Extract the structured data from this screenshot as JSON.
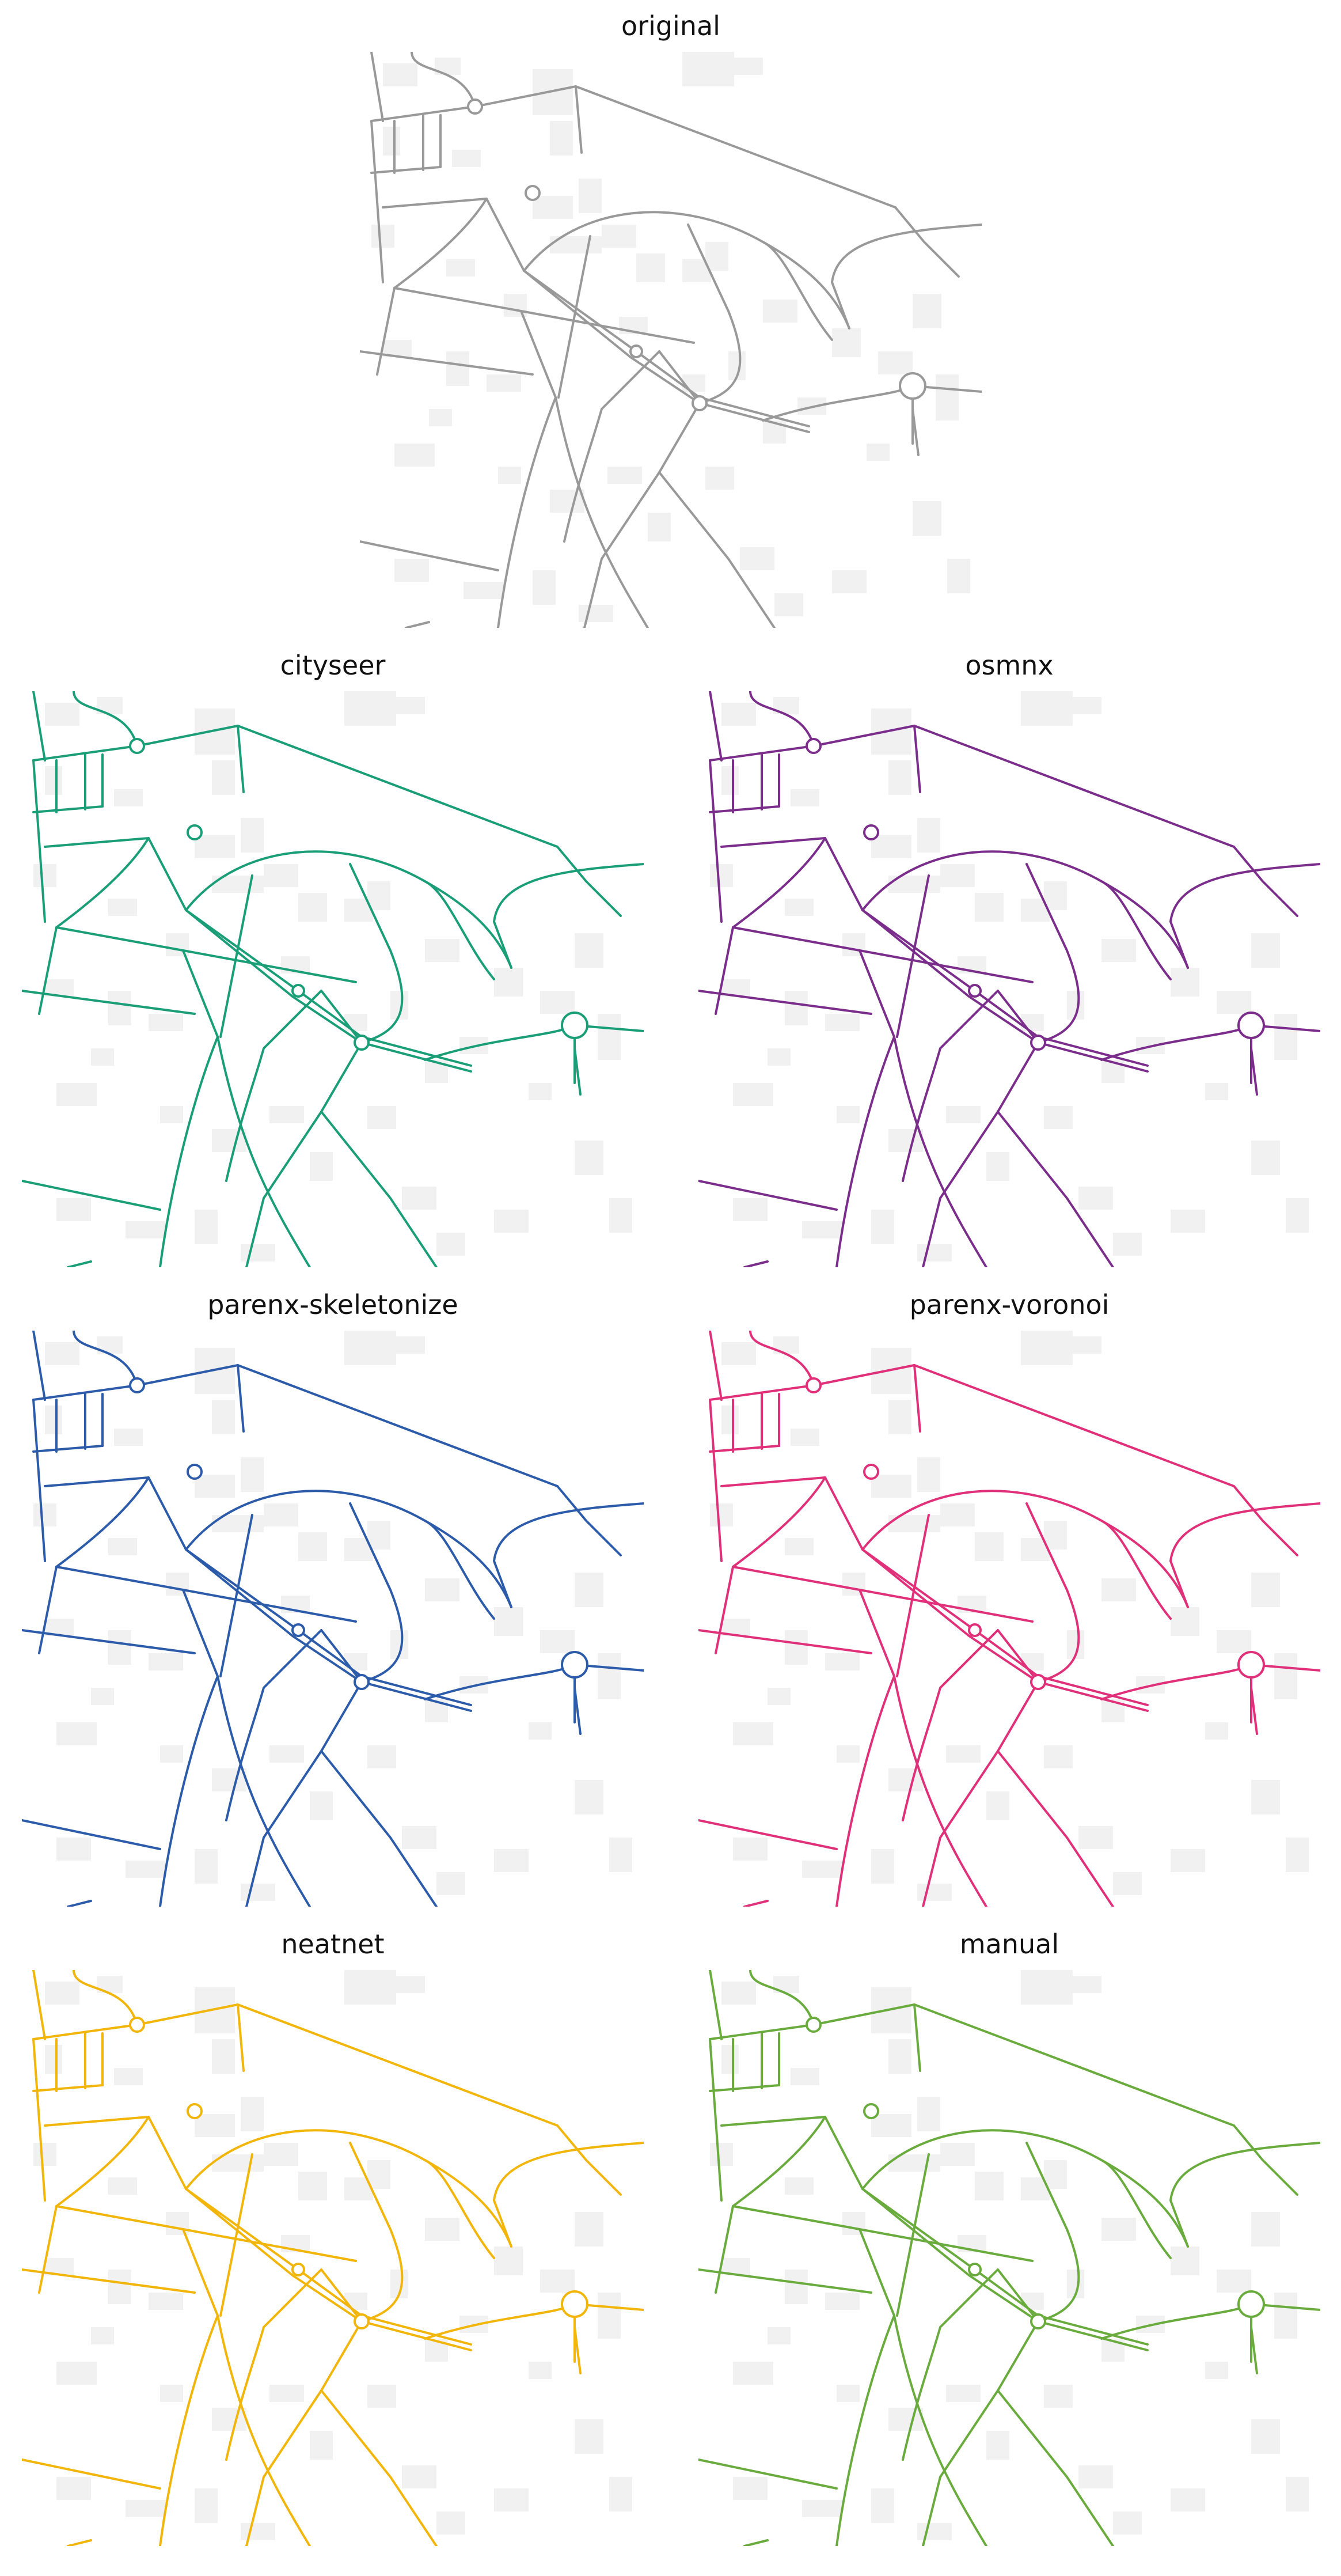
{
  "panels": [
    {
      "title": "original",
      "color": "#999999"
    },
    {
      "title": "cityseer",
      "color": "#1a9e77"
    },
    {
      "title": "osmnx",
      "color": "#7b2d8b"
    },
    {
      "title": "parenx-skeletonize",
      "color": "#2b5ba9"
    },
    {
      "title": "parenx-voronoi",
      "color": "#e0307a"
    },
    {
      "title": "neatnet",
      "color": "#f2b50a"
    },
    {
      "title": "manual",
      "color": "#6aab3e"
    }
  ],
  "building_color": "#f1f1f1"
}
